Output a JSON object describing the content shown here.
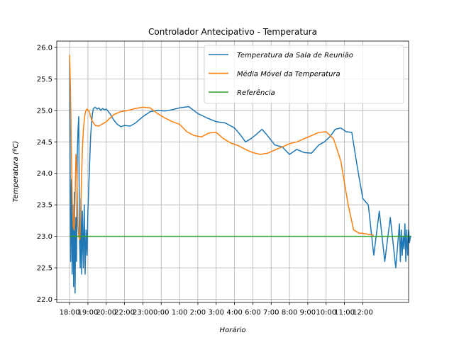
{
  "chart_data": {
    "type": "line",
    "title": "Controlador Antecipativo - Temperatura",
    "xlabel": "Horário",
    "ylabel": "Temperatura (ºC)",
    "x_ticks": [
      "18:00",
      "19:00",
      "20:00",
      "22:00",
      "23:00",
      "0:00",
      "1:00",
      "2:00",
      "3:00",
      "4:00",
      "6:00",
      "7:00",
      "8:00",
      "9:00",
      "10:00",
      "11:00",
      "12:00"
    ],
    "y_ticks": [
      "22.0",
      "22.5",
      "23.0",
      "23.5",
      "24.0",
      "24.5",
      "25.0",
      "25.5",
      "26.0"
    ],
    "ylim": [
      21.95,
      26.1
    ],
    "xlim": [
      -0.7,
      18.5
    ],
    "grid": true,
    "legend_position": "top-right",
    "colors": {
      "temperature": "#1f77b4",
      "moving_average": "#ff7f0e",
      "reference": "#2ca02c"
    },
    "series": [
      {
        "name": "Temperatura da Sala de Reunião",
        "x": [
          0.0,
          0.03,
          0.06,
          0.1,
          0.14,
          0.18,
          0.22,
          0.26,
          0.3,
          0.34,
          0.38,
          0.42,
          0.46,
          0.5,
          0.54,
          0.58,
          0.62,
          0.66,
          0.7,
          0.75,
          0.8,
          0.85,
          0.9,
          0.95,
          1.0,
          1.05,
          1.1,
          1.15,
          1.2,
          1.25,
          1.3,
          1.4,
          1.5,
          1.6,
          1.7,
          1.8,
          1.9,
          2.0,
          2.2,
          2.4,
          2.6,
          2.8,
          3.0,
          3.3,
          3.6,
          4.0,
          4.4,
          4.8,
          5.2,
          5.6,
          6.0,
          6.5,
          7.0,
          7.5,
          8.0,
          8.5,
          9.0,
          9.3,
          9.6,
          9.9,
          10.2,
          10.5,
          10.8,
          11.2,
          11.6,
          12.0,
          12.4,
          12.8,
          13.2,
          13.6,
          13.9,
          14.2,
          14.5,
          14.8,
          15.1,
          15.4,
          15.7,
          16.0,
          16.3,
          16.6,
          16.9,
          17.2,
          17.5,
          17.8,
          18.0,
          18.05,
          18.1,
          18.15,
          18.2,
          18.25,
          18.3,
          18.35,
          18.4,
          18.45,
          18.5,
          18.55,
          18.6,
          18.65
        ],
        "values": [
          25.8,
          24.1,
          22.6,
          23.9,
          22.4,
          23.5,
          22.2,
          23.7,
          22.1,
          23.3,
          22.6,
          24.3,
          24.7,
          24.9,
          23.0,
          22.5,
          23.6,
          22.4,
          23.4,
          22.5,
          23.5,
          22.4,
          23.1,
          22.7,
          23.4,
          23.8,
          24.2,
          24.6,
          24.8,
          24.95,
          25.03,
          25.05,
          25.02,
          25.04,
          25.0,
          25.03,
          25.01,
          25.02,
          24.95,
          24.85,
          24.78,
          24.74,
          24.76,
          24.75,
          24.8,
          24.9,
          24.98,
          25.0,
          24.99,
          25.01,
          25.04,
          25.06,
          24.95,
          24.88,
          24.82,
          24.8,
          24.72,
          24.62,
          24.5,
          24.55,
          24.62,
          24.7,
          24.6,
          24.45,
          24.42,
          24.3,
          24.38,
          24.33,
          24.32,
          24.45,
          24.5,
          24.58,
          24.7,
          24.72,
          24.66,
          24.65,
          24.1,
          23.6,
          23.5,
          22.7,
          23.4,
          22.6,
          23.3,
          22.5,
          23.2,
          22.6,
          23.1,
          22.7,
          23.0,
          22.8,
          23.2,
          22.6,
          23.1,
          22.7,
          23.1,
          22.9,
          23.0,
          23.0
        ]
      },
      {
        "name": "Média Móvel da Temperatura",
        "x": [
          0.0,
          0.05,
          0.1,
          0.15,
          0.2,
          0.25,
          0.3,
          0.35,
          0.4,
          0.45,
          0.5,
          0.55,
          0.6,
          0.65,
          0.7,
          0.75,
          0.8,
          0.85,
          0.9,
          0.95,
          1.0,
          1.05,
          1.1,
          1.15,
          1.2,
          1.3,
          1.4,
          1.6,
          2.0,
          2.4,
          2.8,
          3.2,
          3.6,
          4.0,
          4.4,
          4.8,
          5.2,
          5.6,
          6.0,
          6.4,
          6.8,
          7.2,
          7.6,
          8.0,
          8.4,
          8.8,
          9.2,
          9.6,
          10.0,
          10.4,
          10.8,
          11.2,
          11.6,
          12.0,
          12.4,
          12.8,
          13.2,
          13.6,
          14.0,
          14.4,
          14.8,
          15.2,
          15.5,
          15.8,
          16.0,
          16.1,
          16.2,
          16.3,
          16.4,
          16.5,
          16.6
        ],
        "values": [
          25.88,
          25.3,
          24.3,
          23.5,
          23.15,
          23.1,
          23.6,
          24.3,
          24.0,
          23.2,
          23.0,
          22.95,
          23.3,
          23.9,
          24.4,
          24.68,
          24.85,
          24.95,
          25.0,
          25.02,
          25.0,
          25.0,
          24.95,
          24.9,
          24.85,
          24.8,
          24.76,
          24.75,
          24.82,
          24.93,
          24.98,
          25.0,
          25.03,
          25.05,
          25.04,
          24.95,
          24.88,
          24.82,
          24.78,
          24.66,
          24.6,
          24.58,
          24.64,
          24.65,
          24.55,
          24.48,
          24.44,
          24.38,
          24.33,
          24.3,
          24.32,
          24.37,
          24.42,
          24.47,
          24.5,
          24.55,
          24.6,
          24.65,
          24.66,
          24.55,
          24.2,
          23.5,
          23.1,
          23.05,
          23.05,
          23.04,
          23.04,
          23.03,
          23.03,
          23.02,
          23.02
        ]
      },
      {
        "name": "Referência",
        "x": [
          0.0,
          18.6
        ],
        "values": [
          23.0,
          23.0
        ]
      }
    ]
  }
}
